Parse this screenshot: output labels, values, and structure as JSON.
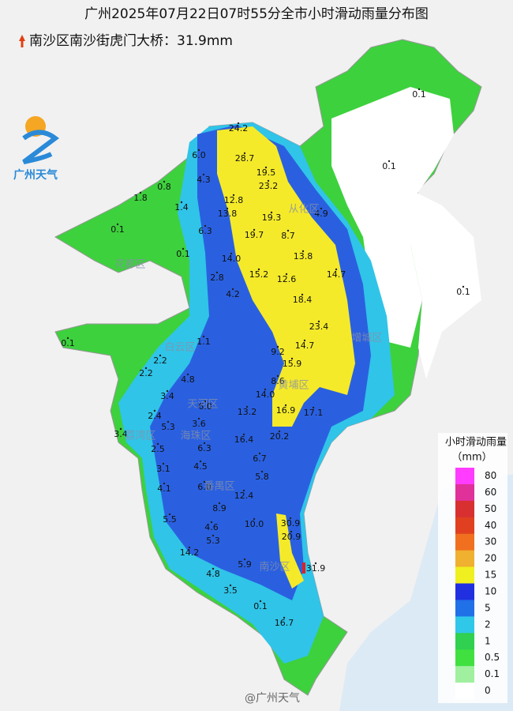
{
  "header": {
    "title": "广州2025年07月22日07时55分全市小时滑动雨量分布图",
    "subtitle": "南沙区南沙街虎门大桥：31.9mm"
  },
  "logo": {
    "text": "广州天气"
  },
  "watermark": "@广州天气",
  "districts": [
    "从化区",
    "花都区",
    "白云区",
    "增城区",
    "黄埔区",
    "天河区",
    "荔湾区",
    "海珠区",
    "番禺区",
    "南沙区"
  ],
  "stations": [
    "24.2",
    "28.7",
    "6.0",
    "4.3",
    "19.5",
    "23.2",
    "12.8",
    "1.8",
    "0.8",
    "1.4",
    "13.8",
    "19.3",
    "4.9",
    "0.1",
    "6.3",
    "19.7",
    "8.7",
    "0.1",
    "14.0",
    "13.8",
    "2.8",
    "15.2",
    "12.6",
    "14.7",
    "4.2",
    "18.4",
    "0.1",
    "23.4",
    "1.1",
    "0.1",
    "14.7",
    "9.2",
    "2.2",
    "15.9",
    "2.2",
    "4.8",
    "8.6",
    "14.0",
    "3.4",
    "6.0",
    "13.2",
    "16.9",
    "17.1",
    "2.4",
    "5.3",
    "3.6",
    "3.4",
    "20.2",
    "16.4",
    "2.5",
    "6.3",
    "6.7",
    "3.1",
    "4.5",
    "5.8",
    "4.1",
    "6.0",
    "12.4",
    "8.9",
    "30.9",
    "5.5",
    "10.0",
    "4.6",
    "20.9",
    "5.3",
    "14.2",
    "31.9",
    "5.9",
    "4.8",
    "3.5",
    "0.1",
    "16.7",
    "0.1",
    "0.1"
  ],
  "legend": {
    "title": "小时滑动雨量",
    "unit": "（mm）",
    "items": [
      {
        "label": "80",
        "color": "#ff3cff"
      },
      {
        "label": "60",
        "color": "#e0309a"
      },
      {
        "label": "50",
        "color": "#d83030"
      },
      {
        "label": "40",
        "color": "#e04020"
      },
      {
        "label": "30",
        "color": "#f07020"
      },
      {
        "label": "20",
        "color": "#f0b030"
      },
      {
        "label": "15",
        "color": "#f0f020"
      },
      {
        "label": "10",
        "color": "#2030e0"
      },
      {
        "label": "5",
        "color": "#2070e8"
      },
      {
        "label": "2",
        "color": "#30c8e8"
      },
      {
        "label": "1",
        "color": "#30d050"
      },
      {
        "label": "0.5",
        "color": "#40e040"
      },
      {
        "label": "0.1",
        "color": "#a0f0a0"
      },
      {
        "label": "0",
        "color": "#ffffff"
      }
    ]
  }
}
